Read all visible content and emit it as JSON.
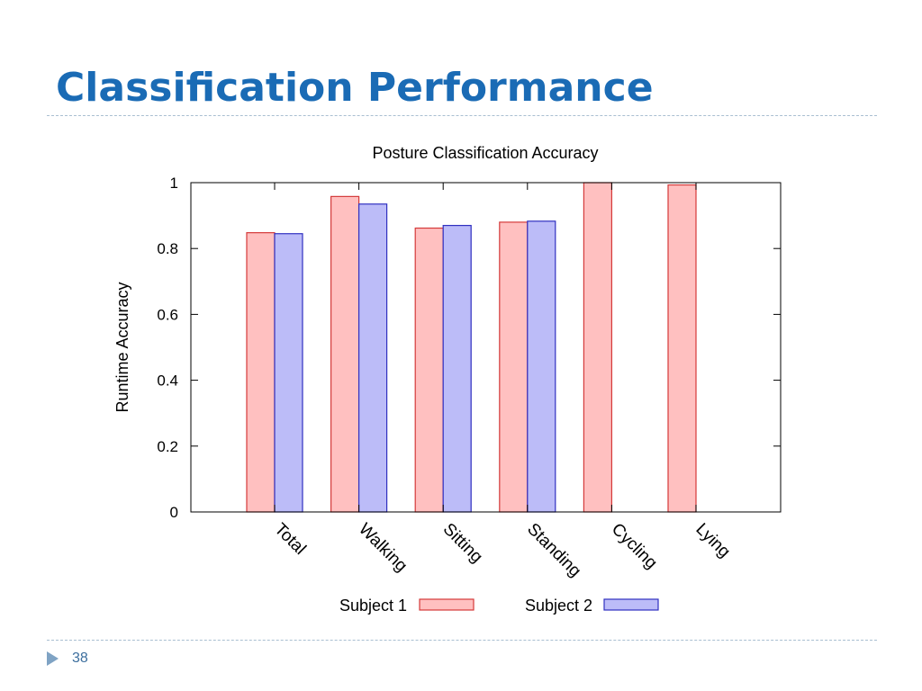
{
  "slide": {
    "title": "Classification Performance",
    "page_number": "38"
  },
  "colors": {
    "title": "#1a6bb5",
    "subject1_fill": "#ffc0c0",
    "subject1_stroke": "#d43a3a",
    "subject2_fill": "#bcbcf8",
    "subject2_stroke": "#3030c0",
    "rule": "#a9bfd1",
    "footer_marker": "#7fa3c4"
  },
  "icons": {
    "footer_marker": "triangle-right-icon"
  },
  "chart_data": {
    "type": "bar",
    "title": "Posture Classification Accuracy",
    "xlabel": "",
    "ylabel": "Runtime Accuracy",
    "ylim": [
      0,
      1
    ],
    "yticks": [
      {
        "value": 0,
        "label": "0"
      },
      {
        "value": 0.2,
        "label": "0.2"
      },
      {
        "value": 0.4,
        "label": "0.4"
      },
      {
        "value": 0.6,
        "label": "0.6"
      },
      {
        "value": 0.8,
        "label": "0.8"
      },
      {
        "value": 1,
        "label": "1"
      }
    ],
    "categories": [
      "Total",
      "Walking",
      "Sitting",
      "Standing",
      "Cycling",
      "Lying"
    ],
    "series": [
      {
        "name": "Subject 1",
        "values": [
          0.848,
          0.958,
          0.862,
          0.88,
          1.0,
          0.993
        ]
      },
      {
        "name": "Subject 2",
        "values": [
          0.845,
          0.935,
          0.87,
          0.883,
          null,
          null
        ]
      }
    ],
    "legend_position": "bottom",
    "grid": false
  }
}
